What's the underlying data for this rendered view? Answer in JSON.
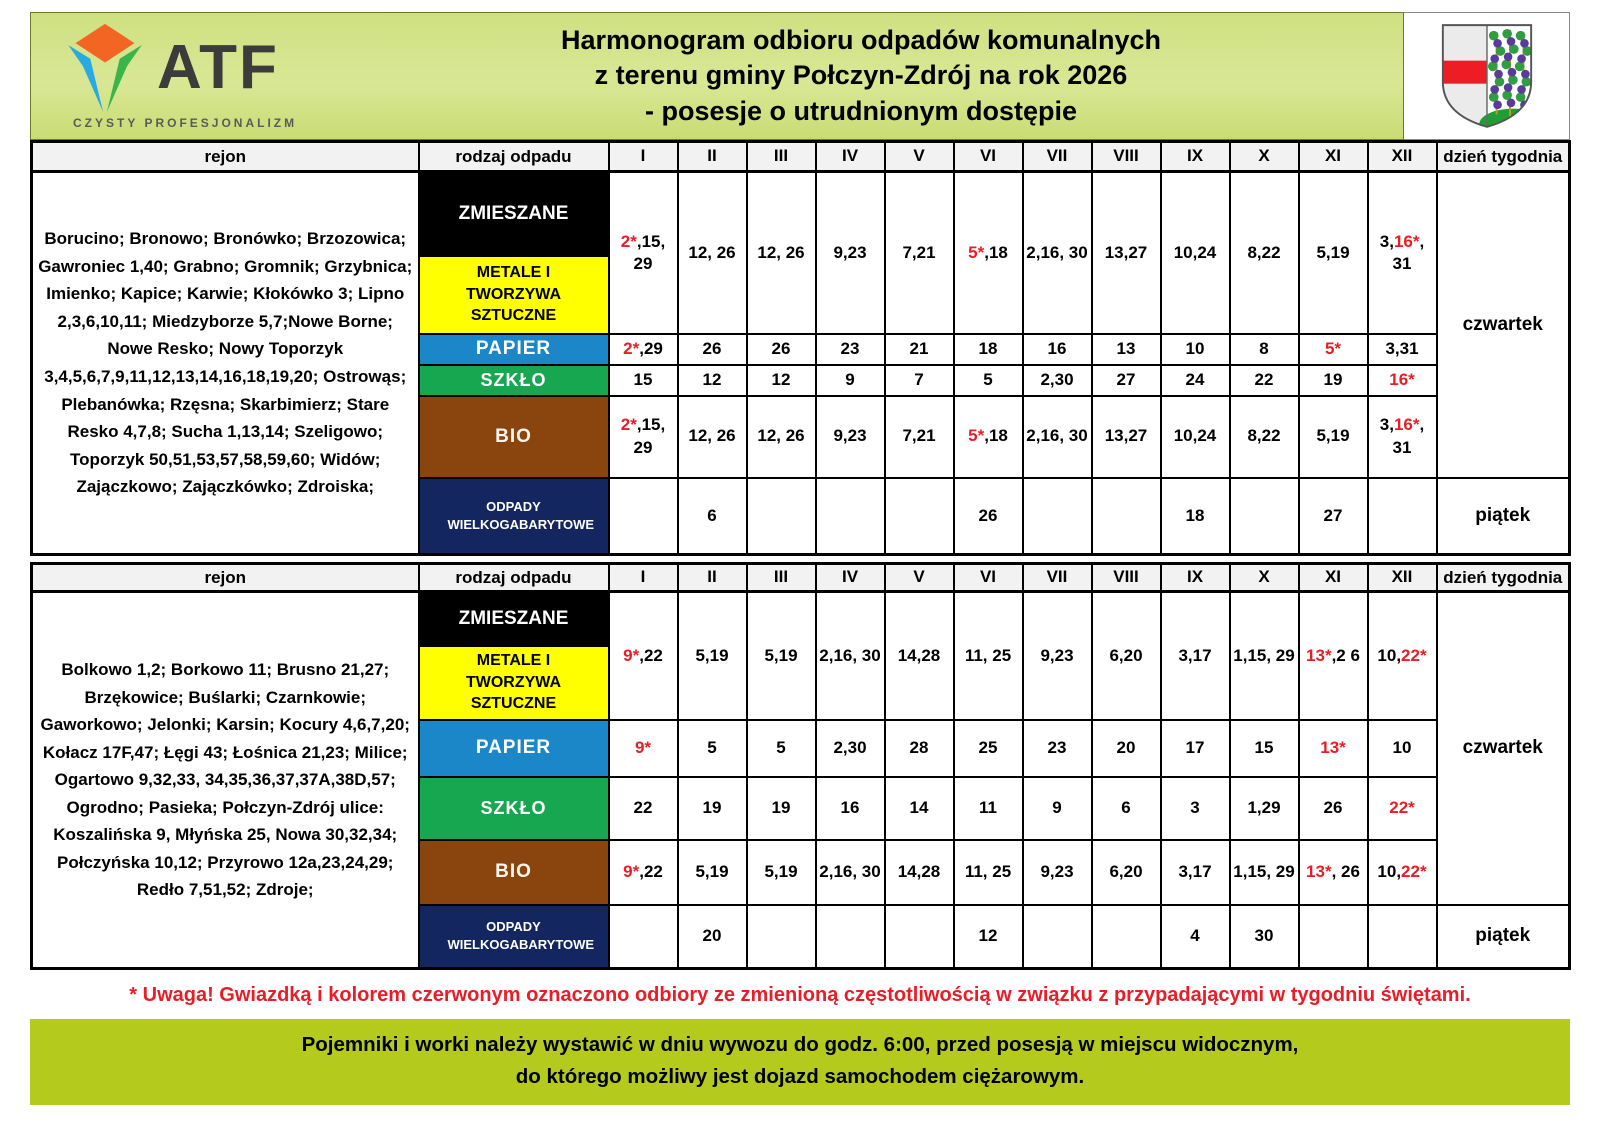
{
  "header": {
    "title_line1": "Harmonogram odbioru odpadów komunalnych",
    "title_line2": "z terenu gminy Połczyn-Zdrój na rok 2026",
    "title_line3": "- posesje o utrudnionym dostępie",
    "logo_text": "ATF",
    "logo_tagline": "CZYSTY  PROFESJONALIZM"
  },
  "columns": {
    "rejon": "rejon",
    "waste": "rodzaj odpadu",
    "months": [
      "I",
      "II",
      "III",
      "IV",
      "V",
      "VI",
      "VII",
      "VIII",
      "IX",
      "X",
      "XI",
      "XII"
    ],
    "day": "dzień tygodnia"
  },
  "waste_types": [
    {
      "name": "ZMIESZANE",
      "color": "#000000"
    },
    {
      "name": "METALE I TWORZYWA SZTUCZNE",
      "color": "#ffff00"
    },
    {
      "name": "PAPIER",
      "color": "#1b87c9"
    },
    {
      "name": "SZKŁO",
      "color": "#16a750"
    },
    {
      "name": "BIO",
      "color": "#8a450e"
    },
    {
      "name": "ODPADY WIELKOGABARYTOWE",
      "color": "#13265f"
    }
  ],
  "tables": [
    {
      "region": "Borucino; Bronowo; Bronówko; Brzozowica; Gawroniec 1,40; Grabno; Gromnik; Grzybnica; Imienko; Kapice; Karwie; Kłokówko 3; Lipno 2,3,6,10,11; Miedzyborze 5,7;Nowe Borne; Nowe Resko; Nowy Toporzyk 3,4,5,6,7,9,11,12,13,14,16,18,19,20; Ostrowąs; Plebanówka; Rzęsna; Skarbimierz; Stare Resko 4,7,8; Sucha 1,13,14; Szeligowo; Toporzyk 50,51,53,57,58,59,60; Widów; Zajączkowo; Zajączkówko; Zdroiska;",
      "day_main": "czwartek",
      "day_bulky": "piątek",
      "rows": {
        "zmieszane": [
          "[2*],15, 29",
          "12, 26",
          "12, 26",
          "9,23",
          "7,21",
          "[5*],18",
          "2,16, 30",
          "13,27",
          "10,24",
          "8,22",
          "5,19",
          "3,[16*], 31"
        ],
        "papier": [
          "[2*],29",
          "26",
          "26",
          "23",
          "21",
          "18",
          "16",
          "13",
          "10",
          "8",
          "[5*]",
          "3,31"
        ],
        "szklo": [
          "15",
          "12",
          "12",
          "9",
          "7",
          "5",
          "2,30",
          "27",
          "24",
          "22",
          "19",
          "[16*]"
        ],
        "bio": [
          "[2*],15, 29",
          "12, 26",
          "12, 26",
          "9,23",
          "7,21",
          "[5*],18",
          "2,16, 30",
          "13,27",
          "10,24",
          "8,22",
          "5,19",
          "3,[16*], 31"
        ],
        "bulky": [
          "",
          "6",
          "",
          "",
          "",
          "26",
          "",
          "",
          "18",
          "",
          "27",
          ""
        ]
      }
    },
    {
      "region": "Bolkowo 1,2; Borkowo 11; Brusno 21,27; Brzękowice; Buślarki; Czarnkowie; Gaworkowo; Jelonki; Karsin; Kocury 4,6,7,20; Kołacz 17F,47; Łęgi 43; Łośnica 21,23; Milice; Ogartowo 9,32,33, 34,35,36,37,37A,38D,57; Ogrodno; Pasieka; Połczyn-Zdrój ulice: Koszalińska 9, Młyńska 25, Nowa 30,32,34; Połczyńska 10,12; Przyrowo 12a,23,24,29; Redło 7,51,52; Zdroje;",
      "day_main": "czwartek",
      "day_bulky": "piątek",
      "rows": {
        "zmieszane": [
          "[9*],22",
          "5,19",
          "5,19",
          "2,16, 30",
          "14,28",
          "11, 25",
          "9,23",
          "6,20",
          "3,17",
          "1,15, 29",
          "[13*],2 6",
          "10,[22*]"
        ],
        "papier": [
          "[9*]",
          "5",
          "5",
          "2,30",
          "28",
          "25",
          "23",
          "20",
          "17",
          "15",
          "[13*]",
          "10"
        ],
        "szklo": [
          "22",
          "19",
          "19",
          "16",
          "14",
          "11",
          "9",
          "6",
          "3",
          "1,29",
          "26",
          "[22*]"
        ],
        "bio": [
          "[9*],22",
          "5,19",
          "5,19",
          "2,16, 30",
          "14,28",
          "11, 25",
          "9,23",
          "6,20",
          "3,17",
          "1,15, 29",
          "[13*], 26",
          "10,[22*]"
        ],
        "bulky": [
          "",
          "20",
          "",
          "",
          "",
          "12",
          "",
          "",
          "4",
          "30",
          "",
          ""
        ]
      }
    }
  ],
  "footer": {
    "note": "* Uwaga! Gwiazdką i kolorem czerwonym oznaczono odbiory ze zmienioną częstotliwością w związku z przypadającymi w tygodniu świętami.",
    "banner_line1": "Pojemniki i worki należy wystawić w dniu wywozu do godz. 6:00, przed posesją w miejscu widocznym,",
    "banner_line2": "do którego możliwy jest dojazd samochodem ciężarowym."
  },
  "colors": {
    "highlight_red": "#e81d25",
    "header_green": "#d3e38a",
    "banner_green": "#b4ca1d",
    "crest_red_band": "#ee1c25",
    "crest_mound_green": "#1f9e35",
    "crest_grape_purple": "#5b3a9e"
  }
}
